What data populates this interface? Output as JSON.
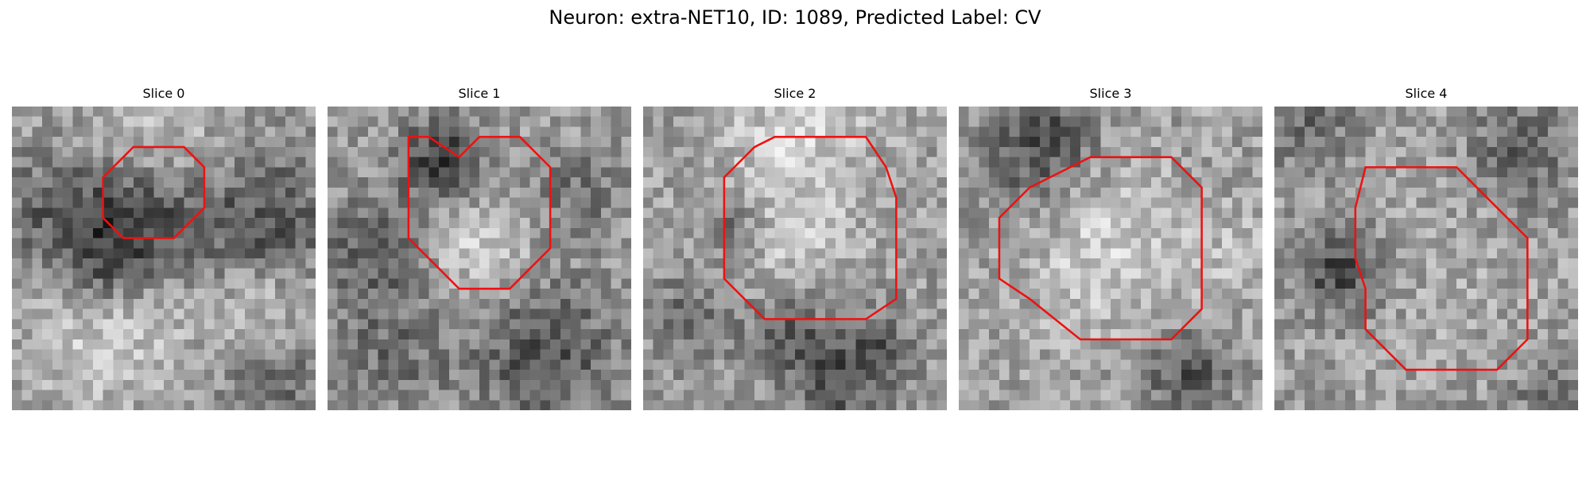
{
  "figure": {
    "title": "Neuron: extra-NET10, ID: 1089, Predicted Label: CV"
  },
  "colors": {
    "contour": "#ee1111",
    "background": "#ffffff"
  },
  "grid_size": 30,
  "panels": [
    {
      "label": "Slice 0",
      "image": "noisy grayscale electron-micrograph crop: dark band across middle, bright lower-left and mid-right blobs",
      "contour": [
        [
          12,
          4
        ],
        [
          17,
          4
        ],
        [
          19,
          6
        ],
        [
          19,
          10
        ],
        [
          16,
          13
        ],
        [
          11,
          13
        ],
        [
          9,
          11
        ],
        [
          9,
          7
        ]
      ],
      "noise_seed": 11,
      "blobs": [
        {
          "x": 12,
          "y": 11,
          "r": 4,
          "v": -0.35
        },
        {
          "x": 24,
          "y": 11,
          "r": 5,
          "v": -0.3
        },
        {
          "x": 4,
          "y": 10,
          "r": 4,
          "v": -0.25
        },
        {
          "x": 8,
          "y": 16,
          "r": 3,
          "v": -0.2
        },
        {
          "x": 24,
          "y": 19,
          "r": 3.5,
          "v": 0.2
        },
        {
          "x": 9,
          "y": 22,
          "r": 5,
          "v": 0.18
        },
        {
          "x": 14,
          "y": 2,
          "r": 5,
          "v": 0.12
        },
        {
          "x": 26,
          "y": 27,
          "r": 4,
          "v": -0.18
        }
      ]
    },
    {
      "label": "Slice 1",
      "image": "noisy grayscale crop: dark ring around lighter cell body with cluster of dark pixels at top",
      "contour": [
        [
          8,
          3
        ],
        [
          10,
          3
        ],
        [
          13,
          5
        ],
        [
          15,
          3
        ],
        [
          19,
          3
        ],
        [
          22,
          6
        ],
        [
          22,
          14
        ],
        [
          18,
          18
        ],
        [
          13,
          18
        ],
        [
          8,
          13
        ],
        [
          8,
          10
        ],
        [
          8,
          6
        ]
      ],
      "noise_seed": 23,
      "blobs": [
        {
          "x": 11,
          "y": 5,
          "r": 3,
          "v": -0.4
        },
        {
          "x": 14,
          "y": 13,
          "r": 4,
          "v": 0.2
        },
        {
          "x": 4,
          "y": 14,
          "r": 4,
          "v": -0.25
        },
        {
          "x": 21,
          "y": 24,
          "r": 5,
          "v": -0.3
        },
        {
          "x": 6,
          "y": 24,
          "r": 4,
          "v": -0.18
        },
        {
          "x": 24,
          "y": 8,
          "r": 3,
          "v": -0.18
        }
      ]
    },
    {
      "label": "Slice 2",
      "image": "noisy grayscale crop: large round membrane-bound profile with dark rim, dark vertical structures at bottom",
      "contour": [
        [
          13,
          3
        ],
        [
          22,
          3
        ],
        [
          24,
          6
        ],
        [
          25,
          9
        ],
        [
          25,
          19
        ],
        [
          22,
          21
        ],
        [
          12,
          21
        ],
        [
          8,
          17
        ],
        [
          8,
          7
        ],
        [
          11,
          4
        ]
      ],
      "noise_seed": 37,
      "blobs": [
        {
          "x": 13,
          "y": 12,
          "r": 5.5,
          "v": 0.15
        },
        {
          "x": 8,
          "y": 11,
          "r": 2.5,
          "v": -0.25
        },
        {
          "x": 4,
          "y": 20,
          "r": 3,
          "v": -0.2
        },
        {
          "x": 14,
          "y": 22,
          "r": 3,
          "v": -0.3
        },
        {
          "x": 22,
          "y": 24,
          "r": 3,
          "v": -0.3
        },
        {
          "x": 18,
          "y": 28,
          "r": 2.5,
          "v": -0.25
        },
        {
          "x": 15,
          "y": 1,
          "r": 5,
          "v": 0.18
        }
      ]
    },
    {
      "label": "Slice 3",
      "image": "noisy grayscale crop: round lighter cell body outlined by darker membrane, dark streak on right",
      "contour": [
        [
          13,
          5
        ],
        [
          21,
          5
        ],
        [
          24,
          8
        ],
        [
          24,
          20
        ],
        [
          21,
          23
        ],
        [
          12,
          23
        ],
        [
          7,
          19
        ],
        [
          4,
          17
        ],
        [
          4,
          11
        ],
        [
          7,
          8
        ]
      ],
      "noise_seed": 51,
      "blobs": [
        {
          "x": 14,
          "y": 14,
          "r": 6,
          "v": 0.18
        },
        {
          "x": 6,
          "y": 5,
          "r": 4,
          "v": -0.2
        },
        {
          "x": 22,
          "y": 26,
          "r": 3,
          "v": -0.3
        },
        {
          "x": 9,
          "y": 2,
          "r": 3,
          "v": -0.2
        },
        {
          "x": 27,
          "y": 14,
          "r": 3,
          "v": 0.1
        }
      ]
    },
    {
      "label": "Slice 4",
      "image": "noisy grayscale crop: textured cell body with thick dark membrane on left side and dark streak top-right",
      "contour": [
        [
          9,
          6
        ],
        [
          18,
          6
        ],
        [
          22,
          10
        ],
        [
          25,
          13
        ],
        [
          25,
          23
        ],
        [
          22,
          26
        ],
        [
          13,
          26
        ],
        [
          9,
          22
        ],
        [
          9,
          18
        ],
        [
          8,
          15
        ],
        [
          8,
          10
        ]
      ],
      "noise_seed": 67,
      "blobs": [
        {
          "x": 6,
          "y": 16,
          "r": 3,
          "v": -0.35
        },
        {
          "x": 16,
          "y": 16,
          "r": 7,
          "v": 0.05
        },
        {
          "x": 24,
          "y": 4,
          "r": 3.5,
          "v": -0.25
        },
        {
          "x": 3,
          "y": 2,
          "r": 3,
          "v": -0.2
        },
        {
          "x": 27,
          "y": 28,
          "r": 3,
          "v": -0.18
        }
      ]
    }
  ]
}
